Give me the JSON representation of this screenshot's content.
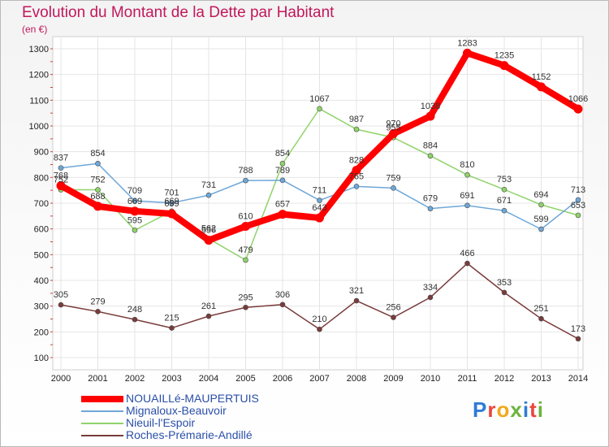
{
  "title": "Evolution du Montant de la Dette par Habitant",
  "unit": "(en €)",
  "logo": "Proxiti",
  "chart_data": {
    "type": "line",
    "title": "Evolution du Montant de la Dette par Habitant",
    "ylabel": "(en €)",
    "xlabel": "",
    "ylim": [
      100,
      1300
    ],
    "yticks": [
      100,
      200,
      300,
      400,
      500,
      600,
      700,
      800,
      900,
      1000,
      1100,
      1200,
      1300
    ],
    "grid": true,
    "legend": "bottom-left",
    "x": [
      "2000",
      "2001",
      "2002",
      "2003",
      "2004",
      "2005",
      "2006",
      "2007",
      "2008",
      "2009",
      "2010",
      "2011",
      "2012",
      "2013",
      "2014"
    ],
    "series": [
      {
        "name": "NOUAILLé-MAUPERTUIS",
        "color": "#ff0000",
        "values": [
          768,
          688,
          669,
          659,
          556,
          610,
          657,
          643,
          828,
          970,
          1038,
          1283,
          1235,
          1152,
          1066
        ]
      },
      {
        "name": "Mignaloux-Beauvoir",
        "color": "#6ea7d8",
        "values": [
          837,
          854,
          709,
          701,
          731,
          788,
          789,
          711,
          765,
          759,
          679,
          691,
          671,
          599,
          713
        ]
      },
      {
        "name": "Nieuil-l'Espoir",
        "color": "#8fd36a",
        "values": [
          752,
          752,
          595,
          669,
          562,
          479,
          854,
          1067,
          987,
          955,
          884,
          810,
          753,
          694,
          653
        ]
      },
      {
        "name": "Roches-Prémarie-Andillé",
        "color": "#7a3b3b",
        "values": [
          305,
          279,
          248,
          215,
          261,
          295,
          306,
          210,
          321,
          256,
          334,
          466,
          353,
          251,
          173
        ]
      }
    ]
  }
}
